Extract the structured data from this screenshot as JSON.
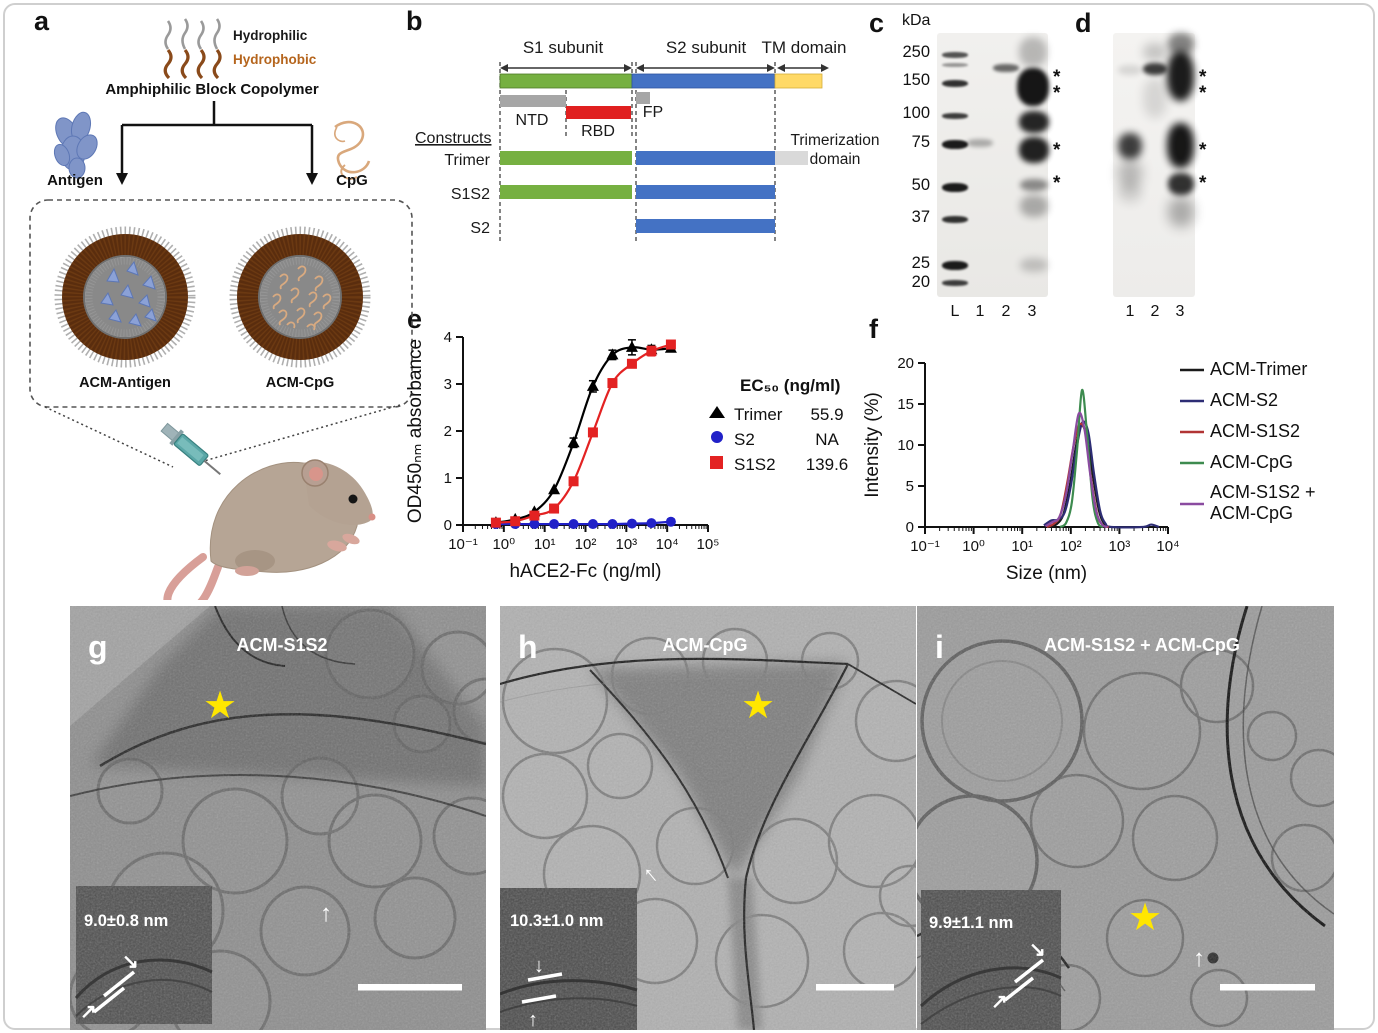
{
  "panel_a": {
    "letter": "a",
    "hydrophilic_label": "Hydrophilic",
    "hydrophobic_label": "Hydrophobic",
    "copolymer_label": "Amphiphilic Block Copolymer",
    "antigen_label": "Antigen",
    "cpg_label": "CpG",
    "acm_antigen_label": "ACM-Antigen",
    "acm_cpg_label": "ACM-CpG",
    "colors": {
      "hydrophilic_text": "#1a1a1a",
      "hydrophobic_text": "#b5651d",
      "particle_ring_brown": "#5a2d0e",
      "particle_core_gray": "#898989",
      "antigen_blue": "#8095c8",
      "cpg_tan": "#d9a87c"
    }
  },
  "panel_b": {
    "letter": "b",
    "s1_label": "S1 subunit",
    "s2_label": "S2 subunit",
    "tm_label": "TM domain",
    "ntd_label": "NTD",
    "rbd_label": "RBD",
    "fp_label": "FP",
    "constructs_label": "Constructs",
    "construct_rows": [
      "Trimer",
      "S1S2",
      "S2"
    ],
    "trimerization_line1": "Trimerization",
    "trimerization_line2": "domain",
    "colors": {
      "s1_green": "#76b041",
      "s2_blue": "#4472c4",
      "tm_yellow": "#ffd966",
      "ntd_gray": "#a6a6a6",
      "rbd_red": "#e02020",
      "fp_gray": "#a6a6a6",
      "trimerization_gray": "#d9d9d9"
    }
  },
  "panel_c": {
    "letter": "c",
    "units": "kDa",
    "ladder": [
      "250",
      "150",
      "100",
      "75",
      "50",
      "37",
      "25",
      "20"
    ],
    "lanes": [
      "L",
      "1",
      "2",
      "3"
    ],
    "asterisk": "*"
  },
  "panel_d": {
    "letter": "d",
    "lanes": [
      "1",
      "2",
      "3"
    ],
    "asterisk": "*"
  },
  "panel_e": {
    "letter": "e"
  },
  "panel_f": {
    "letter": "f"
  },
  "panel_g": {
    "letter": "g",
    "title": "ACM-S1S2",
    "inset_measurement": "9.0±0.8 nm"
  },
  "panel_h": {
    "letter": "h",
    "title": "ACM-CpG",
    "inset_measurement": "10.3±1.0 nm"
  },
  "panel_i": {
    "letter": "i",
    "title": "ACM-S1S2 + ACM-CpG",
    "inset_measurement": "9.9±1.1 nm"
  },
  "chart_data": [
    {
      "id": "elisa-binding",
      "type": "line",
      "title": "",
      "xlabel": "hACE2-Fc (ng/ml)",
      "ylabel": "OD450ₙₘ absorbance",
      "xscale": "log",
      "xlim": [
        0.1,
        100000
      ],
      "ylim": [
        0,
        4
      ],
      "yticks": [
        0,
        1,
        2,
        3,
        4
      ],
      "xtick_labels": [
        "10⁻¹",
        "10⁰",
        "10¹",
        "10²",
        "10³",
        "10⁴",
        "10⁵"
      ],
      "legend_header": "EC₅₀ (ng/ml)",
      "legend_position": "right",
      "series": [
        {
          "name": "Trimer",
          "ec50": "55.9",
          "color": "#000000",
          "marker": "triangle",
          "x": [
            0.64,
            1.9,
            5.6,
            17,
            51,
            152,
            457,
            1372,
            4115,
            12346
          ],
          "y": [
            0.05,
            0.12,
            0.28,
            0.75,
            1.75,
            2.95,
            3.62,
            3.78,
            3.73,
            3.76
          ],
          "yerr": [
            0,
            0,
            0,
            0,
            0.1,
            0.12,
            0.1,
            0.16,
            0.09,
            0.07
          ]
        },
        {
          "name": "S2",
          "ec50": "NA",
          "color": "#2121c8",
          "marker": "circle",
          "x": [
            0.64,
            1.9,
            5.6,
            17,
            51,
            152,
            457,
            1372,
            4115,
            12346
          ],
          "y": [
            0.02,
            0.02,
            0.02,
            0.02,
            0.02,
            0.02,
            0.02,
            0.03,
            0.04,
            0.07
          ],
          "yerr": [
            0,
            0,
            0,
            0,
            0,
            0,
            0,
            0,
            0,
            0
          ]
        },
        {
          "name": "S1S2",
          "ec50": "139.6",
          "color": "#e32222",
          "marker": "square",
          "x": [
            0.64,
            1.9,
            5.6,
            17,
            51,
            152,
            457,
            1372,
            4115,
            12346
          ],
          "y": [
            0.05,
            0.08,
            0.2,
            0.35,
            0.93,
            1.97,
            3.02,
            3.43,
            3.7,
            3.84
          ],
          "yerr": [
            0,
            0,
            0,
            0,
            0,
            0.06,
            0.05,
            0.08,
            0.1,
            0.05
          ]
        }
      ]
    },
    {
      "id": "dls-size-distribution",
      "type": "line",
      "title": "",
      "xlabel": "Size (nm)",
      "ylabel": "Intensity (%)",
      "xscale": "log",
      "xlim": [
        0.1,
        10000
      ],
      "ylim": [
        0,
        20
      ],
      "yticks": [
        0,
        5,
        10,
        15,
        20
      ],
      "xtick_labels": [
        "10⁻¹",
        "10⁰",
        "10¹",
        "10²",
        "10³",
        "10⁴"
      ],
      "legend_position": "right",
      "series": [
        {
          "name": "ACM-Trimer",
          "color": "#1a1a1a",
          "marker": "none",
          "x": [
            35,
            50,
            70,
            95,
            125,
            160,
            210,
            280,
            380,
            500,
            650
          ],
          "y": [
            0,
            0.3,
            1.5,
            5,
            9.5,
            12.3,
            11.2,
            6.5,
            2,
            0.3,
            0
          ]
        },
        {
          "name": "ACM-S2",
          "color": "#2d2d74",
          "marker": "none",
          "x": [
            28,
            40,
            55,
            75,
            100,
            135,
            175,
            230,
            300,
            400,
            520,
            680,
            3000,
            4500,
            6500
          ],
          "y": [
            0.2,
            0.8,
            0.9,
            1.8,
            5,
            10,
            12.8,
            11.5,
            6.5,
            2,
            0.4,
            0,
            0,
            0.3,
            0
          ]
        },
        {
          "name": "ACM-S1S2",
          "color": "#b13434",
          "marker": "none",
          "x": [
            32,
            45,
            62,
            85,
            115,
            150,
            200,
            260,
            350,
            460,
            600
          ],
          "y": [
            0,
            0.4,
            1.6,
            5.5,
            10,
            12.5,
            11.5,
            6,
            1.5,
            0.2,
            0
          ]
        },
        {
          "name": "ACM-CpG",
          "color": "#3d8b4f",
          "marker": "none",
          "x": [
            60,
            80,
            105,
            135,
            170,
            215,
            280,
            360,
            470
          ],
          "y": [
            0,
            0.5,
            3,
            9.5,
            16.7,
            11.5,
            3.5,
            0.5,
            0
          ]
        },
        {
          "name": "ACM-S1S2 + ACM-CpG",
          "label_line1": "ACM-S1S2 +",
          "label_line2": "ACM-CpG",
          "color": "#8a4ba0",
          "marker": "none",
          "x": [
            30,
            42,
            58,
            80,
            108,
            145,
            190,
            250,
            330,
            440,
            570
          ],
          "y": [
            0.1,
            0.6,
            1.2,
            4,
            9,
            13.8,
            12,
            6.5,
            2,
            0.3,
            0
          ]
        }
      ]
    }
  ]
}
